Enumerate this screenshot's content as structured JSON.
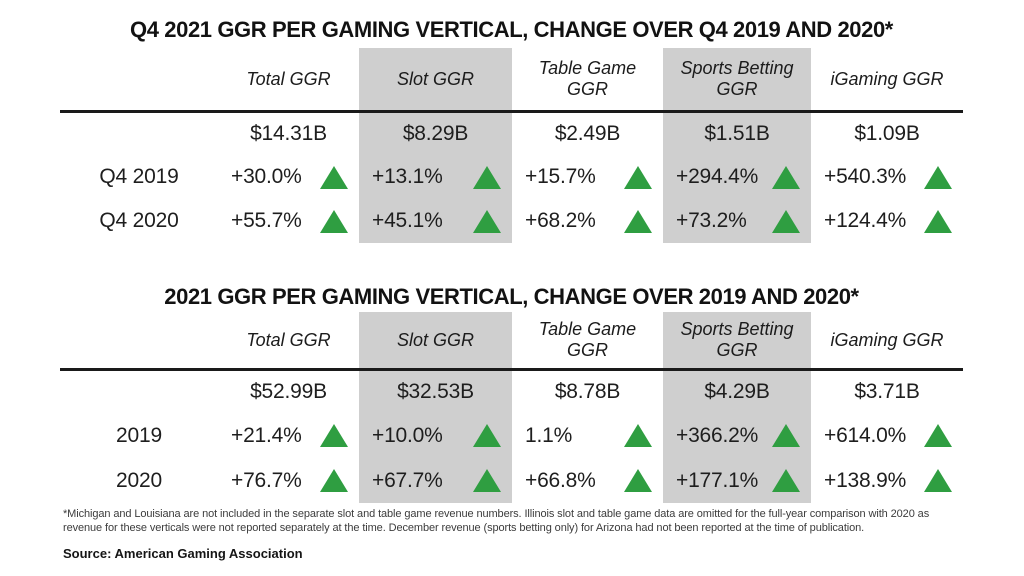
{
  "colors": {
    "up_green": "#2f9e41",
    "highlight_gray": "#cfcfcf"
  },
  "chart_data": [
    {
      "type": "table",
      "title": "Q4 2021 GGR PER GAMING VERTICAL, CHANGE OVER Q4 2019 AND 2020*",
      "columns": [
        "Total GGR",
        "Slot GGR",
        "Table Game GGR",
        "Sports Betting GGR",
        "iGaming GGR"
      ],
      "highlighted_columns": [
        "Slot GGR",
        "Sports Betting GGR"
      ],
      "totals": [
        "$14.31B",
        "$8.29B",
        "$2.49B",
        "$1.51B",
        "$1.09B"
      ],
      "rows": [
        {
          "label": "Q4 2019",
          "direction": "up",
          "values": [
            "+30.0%",
            "+13.1%",
            "+15.7%",
            "+294.4%",
            "+540.3%"
          ]
        },
        {
          "label": "Q4 2020",
          "direction": "up",
          "values": [
            "+55.7%",
            "+45.1%",
            "+68.2%",
            "+73.2%",
            "+124.4%"
          ]
        }
      ]
    },
    {
      "type": "table",
      "title": "2021 GGR PER GAMING VERTICAL, CHANGE OVER 2019 AND 2020*",
      "columns": [
        "Total GGR",
        "Slot GGR",
        "Table Game GGR",
        "Sports Betting GGR",
        "iGaming GGR"
      ],
      "highlighted_columns": [
        "Slot GGR",
        "Sports Betting GGR"
      ],
      "totals": [
        "$52.99B",
        "$32.53B",
        "$8.78B",
        "$4.29B",
        "$3.71B"
      ],
      "rows": [
        {
          "label": "2019",
          "direction": "up",
          "values": [
            "+21.4%",
            "+10.0%",
            "1.1%",
            "+366.2%",
            "+614.0%"
          ]
        },
        {
          "label": "2020",
          "direction": "up",
          "values": [
            "+76.7%",
            "+67.7%",
            "+66.8%",
            "+177.1%",
            "+138.9%"
          ]
        }
      ]
    }
  ],
  "footnote": "*Michigan and Louisiana are not included in the separate slot and table game revenue numbers. Illinois slot and table game data are omitted for the full-year comparison with 2020 as revenue for these verticals were not reported separately at the time. December revenue (sports betting only) for Arizona had not been reported at the time of publication.",
  "source": "Source: American Gaming Association"
}
